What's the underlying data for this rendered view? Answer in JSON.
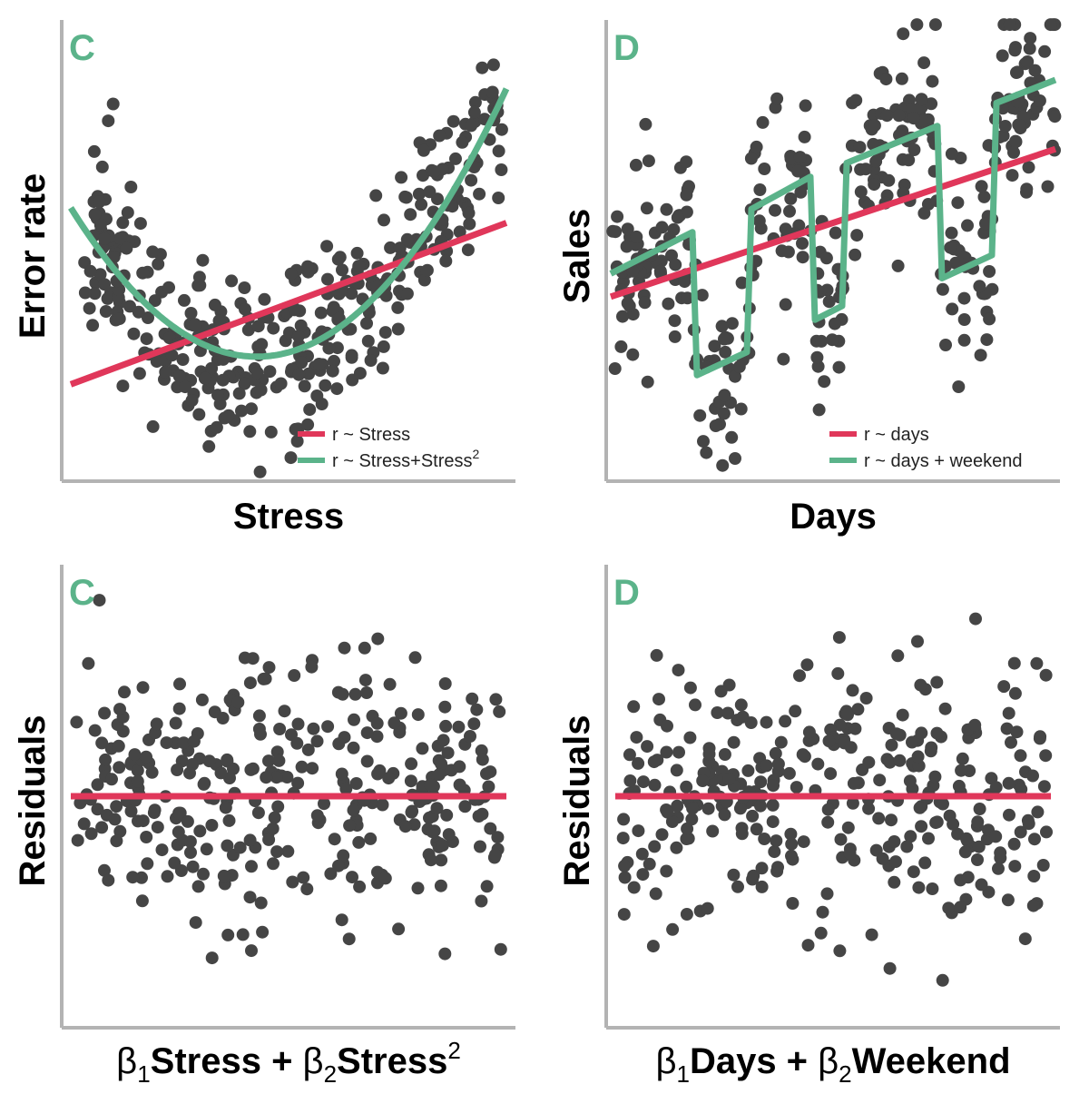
{
  "colors": {
    "dot": "#454545",
    "red": "#e0375a",
    "green": "#5bb38a",
    "axis": "#b3b3b3"
  },
  "chart_data": [
    {
      "type": "scatter",
      "panel_label": "C",
      "xlabel": "Stress",
      "ylabel": "Error rate",
      "xlim": [
        0,
        10
      ],
      "ylim": [
        0,
        10
      ],
      "legend": {
        "placement": "bottom-right",
        "entries": [
          {
            "text": "r ~ Stress",
            "color": "#e0375a"
          },
          {
            "text": "r ~ Stress+Stress",
            "sup": "2",
            "color": "#5bb38a"
          }
        ]
      },
      "lines": [
        {
          "kind": "linear",
          "color": "#e0375a",
          "x0": 0.2,
          "y0": 2.1,
          "x1": 9.8,
          "y1": 5.6
        },
        {
          "kind": "quadratic",
          "color": "#5bb38a",
          "a": 0.192,
          "vertex_x": 4.3,
          "vertex_y": 2.7,
          "xmin": 0.2,
          "xmax": 9.8
        }
      ],
      "dot_model": {
        "count": 380,
        "x_range": [
          0.5,
          9.7
        ],
        "noise": 1.0,
        "seed": 11
      }
    },
    {
      "type": "scatter",
      "panel_label": "D",
      "xlabel": "Days",
      "ylabel": "Sales",
      "xlim": [
        0,
        10
      ],
      "ylim": [
        0,
        10
      ],
      "legend": {
        "placement": "bottom-right",
        "entries": [
          {
            "text": "r ~ days",
            "color": "#e0375a"
          },
          {
            "text": "r ~ days + weekend",
            "color": "#5bb38a"
          }
        ]
      },
      "lines": [
        {
          "kind": "linear",
          "color": "#e0375a",
          "x0": 0.1,
          "y0": 4.0,
          "x1": 9.9,
          "y1": 7.2
        },
        {
          "kind": "polyline",
          "color": "#5bb38a",
          "x": [
            0.1,
            1.9,
            2.0,
            3.1,
            3.2,
            4.5,
            4.6,
            5.2,
            5.3,
            7.3,
            7.4,
            8.5,
            8.6,
            9.9
          ],
          "y": [
            4.5,
            5.4,
            2.3,
            2.8,
            5.9,
            6.6,
            3.5,
            3.8,
            6.9,
            7.7,
            4.4,
            4.9,
            8.2,
            8.7
          ]
        }
      ],
      "weekend_ranges": [
        [
          2.0,
          3.1
        ],
        [
          4.6,
          5.2
        ],
        [
          7.4,
          8.5
        ]
      ],
      "dot_model": {
        "count": 360,
        "x_range": [
          0.1,
          9.9
        ],
        "noise": 1.0,
        "seed": 23
      }
    },
    {
      "type": "scatter",
      "panel_label": "C",
      "xlabel": "β1Stress + β2Stress2",
      "ylabel": "Residuals",
      "xlim": [
        0,
        10
      ],
      "ylim": [
        -5,
        5
      ],
      "lines": [
        {
          "kind": "linear",
          "color": "#e0375a",
          "x0": 0.2,
          "y0": 0,
          "x1": 9.8,
          "y1": 0
        }
      ],
      "dot_model": {
        "count": 330,
        "x_range": [
          0.3,
          9.7
        ],
        "noise": 1.4,
        "seed": 37
      }
    },
    {
      "type": "scatter",
      "panel_label": "D",
      "xlabel": "β1Days + β2Weekend",
      "ylabel": "Residuals",
      "xlim": [
        0,
        10
      ],
      "ylim": [
        -5,
        5
      ],
      "lines": [
        {
          "kind": "linear",
          "color": "#e0375a",
          "x0": 0.2,
          "y0": 0,
          "x1": 9.8,
          "y1": 0
        }
      ],
      "dot_model": {
        "count": 330,
        "x_range": [
          0.3,
          9.7
        ],
        "noise": 1.4,
        "seed": 53
      }
    }
  ]
}
